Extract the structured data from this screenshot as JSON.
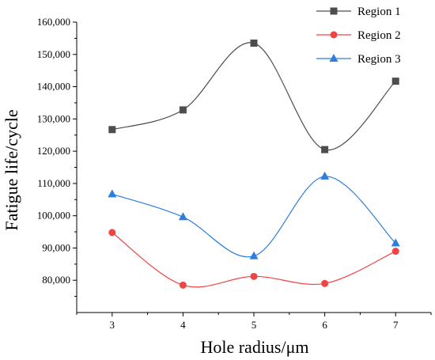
{
  "chart_data": {
    "type": "line",
    "title": "",
    "xlabel": "Hole radius/μm",
    "ylabel": "Fatigue life/cycle",
    "x": [
      3,
      4,
      5,
      6,
      7
    ],
    "xlim": [
      2.5,
      7.5
    ],
    "ylim": [
      70000,
      160000
    ],
    "xticks": [
      3,
      4,
      5,
      6,
      7
    ],
    "yticks": [
      80000,
      90000,
      100000,
      110000,
      120000,
      130000,
      140000,
      150000,
      160000
    ],
    "ytick_labels": [
      "80,000",
      "90,000",
      "100,000",
      "110,000",
      "120,000",
      "130,000",
      "140,000",
      "150,000",
      "160,000"
    ],
    "grid": false,
    "legend_position": "top-right",
    "series": [
      {
        "name": "Region 1",
        "color": "#4d4d4d",
        "marker": "square",
        "values": [
          126700,
          132800,
          153500,
          120500,
          141700
        ]
      },
      {
        "name": "Region 2",
        "color": "#ee4444",
        "marker": "circle",
        "values": [
          94800,
          78500,
          81200,
          79000,
          89000
        ]
      },
      {
        "name": "Region 3",
        "color": "#2f7ddc",
        "marker": "triangle",
        "values": [
          106700,
          99600,
          87500,
          112200,
          91500
        ]
      }
    ]
  }
}
